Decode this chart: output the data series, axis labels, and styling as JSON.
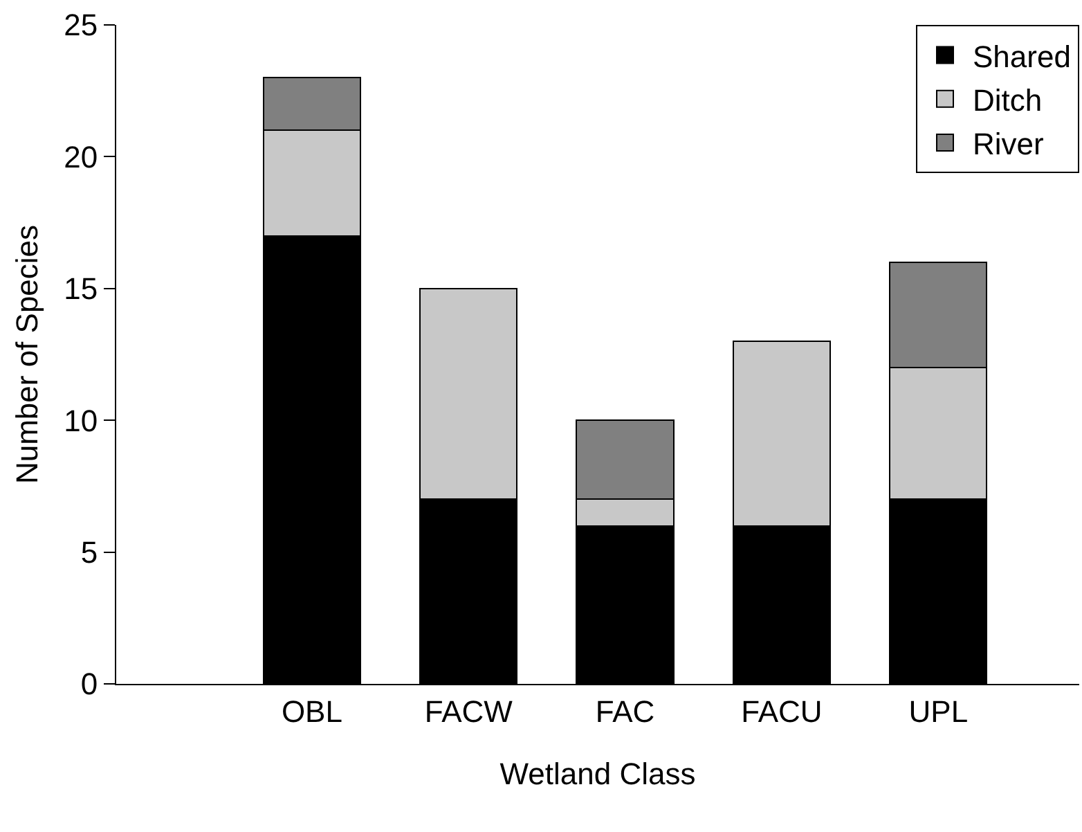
{
  "chart_data": {
    "type": "bar",
    "stacked": true,
    "xlabel": "Wetland Class",
    "ylabel": "Number of Species",
    "categories": [
      "OBL",
      "FACW",
      "FAC",
      "FACU",
      "UPL"
    ],
    "series": [
      {
        "name": "Shared",
        "color": "#000000",
        "values": [
          17,
          7,
          6,
          6,
          7
        ]
      },
      {
        "name": "Ditch",
        "color": "#c8c8c8",
        "values": [
          4,
          8,
          1,
          7,
          5
        ]
      },
      {
        "name": "River",
        "color": "#808080",
        "values": [
          2,
          0,
          3,
          0,
          4
        ]
      }
    ],
    "ylim": [
      0,
      25
    ],
    "yticks": [
      0,
      5,
      10,
      15,
      20,
      25
    ],
    "grid": false,
    "legend": "top right"
  }
}
